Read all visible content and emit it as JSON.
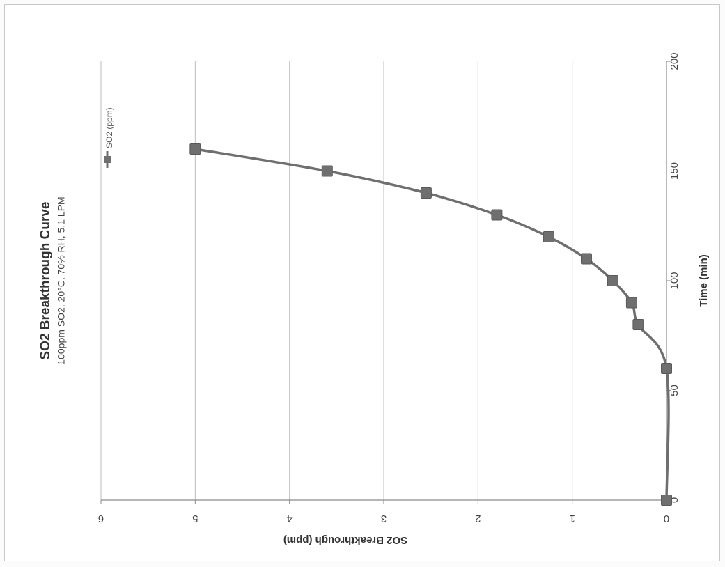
{
  "chart_data": {
    "type": "line",
    "title": "SO2 Breakthrough Curve",
    "subtitle": "100ppm SO2, 20°C, 70% RH, 5.1 LPM",
    "xlabel": "Time (min)",
    "ylabel": "SO2 Breakthrough  (ppm)",
    "xlim": [
      0,
      200
    ],
    "ylim": [
      0,
      6
    ],
    "x_ticks": [
      0,
      50,
      100,
      150,
      200
    ],
    "y_ticks": [
      0,
      1,
      2,
      3,
      4,
      5,
      6
    ],
    "grid": "horizontal",
    "legend": "top-right",
    "orientation": "rotated-90",
    "series": [
      {
        "name": "SO2 (ppm)",
        "color": "#6f6f6f",
        "marker": "square",
        "smooth": true,
        "x": [
          0,
          60,
          80,
          90,
          100,
          110,
          120,
          130,
          140,
          150,
          160
        ],
        "y": [
          0,
          0,
          0.3,
          0.37,
          0.57,
          0.85,
          1.25,
          1.8,
          2.55,
          3.6,
          5.0
        ]
      }
    ]
  }
}
